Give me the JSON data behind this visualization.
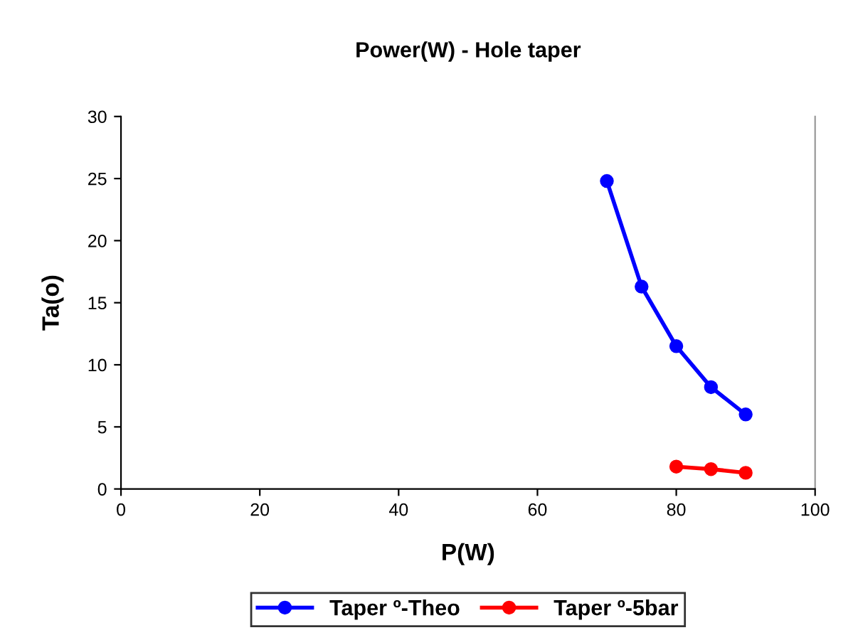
{
  "chart_data": {
    "type": "line",
    "title": "Power(W) - Hole taper",
    "xlabel": "P(W)",
    "ylabel": "Ta(o)",
    "xlim": [
      0,
      100
    ],
    "xticks": [
      0,
      20,
      40,
      60,
      80,
      100
    ],
    "ylim": [
      0,
      30
    ],
    "yticks": [
      0,
      5,
      10,
      15,
      20,
      25,
      30
    ],
    "grid": false,
    "legend": "bottom",
    "marker": "circle",
    "line_style": "solid",
    "series": [
      {
        "name": "Taper º-Theo",
        "color": "#0000ff",
        "x": [
          70,
          75,
          80,
          85,
          90
        ],
        "values": [
          24.8,
          16.3,
          11.5,
          8.2,
          6.0
        ]
      },
      {
        "name": "Taper º-5bar",
        "color": "#ff0000",
        "x": [
          80,
          85,
          90
        ],
        "values": [
          1.8,
          1.6,
          1.3
        ]
      }
    ]
  }
}
